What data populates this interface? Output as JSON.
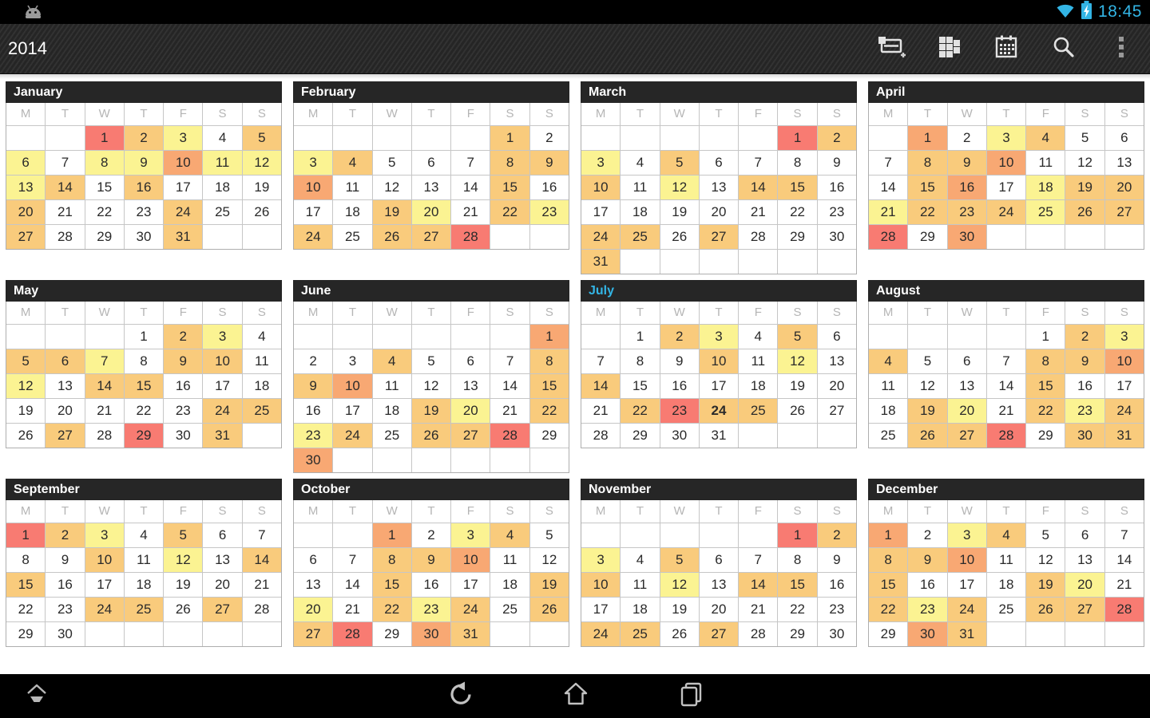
{
  "status_bar": {
    "time": "18:45",
    "icons": [
      "android-logo",
      "wifi",
      "battery-charging"
    ]
  },
  "action_bar": {
    "title": "2014",
    "icons": [
      {
        "name": "new-event"
      },
      {
        "name": "multi-view-grid"
      },
      {
        "name": "month-view"
      },
      {
        "name": "search"
      },
      {
        "name": "overflow-menu"
      }
    ]
  },
  "nav_bar": {
    "icons": [
      "hide-bar",
      "back",
      "home",
      "recent-apps"
    ]
  },
  "colors": {
    "accent_blue": "#33B5E5",
    "header_bg": "#262626",
    "level_yellow": "#FBF392",
    "level_orange": "#F9CB7C",
    "level_deep_orange": "#F8A873",
    "level_red": "#F87B72"
  },
  "calendar": {
    "weekdays": [
      "M",
      "T",
      "W",
      "T",
      "F",
      "S",
      "S"
    ],
    "today": {
      "month": "July",
      "day": 24
    },
    "current_month_color": "#33B5E5",
    "months": [
      {
        "name": "January",
        "start": 2,
        "days": 31,
        "yellow": [
          3,
          6,
          8,
          9,
          11,
          12,
          13
        ],
        "orange": [
          2,
          5,
          14,
          16,
          20,
          24,
          27,
          31
        ],
        "deep_orange": [
          10
        ],
        "red": [
          1
        ]
      },
      {
        "name": "February",
        "start": 5,
        "days": 28,
        "yellow": [
          3,
          20,
          23
        ],
        "orange": [
          1,
          4,
          8,
          9,
          15,
          19,
          22,
          24,
          26,
          27
        ],
        "deep_orange": [
          10
        ],
        "red": [
          28
        ]
      },
      {
        "name": "March",
        "start": 5,
        "days": 31,
        "yellow": [
          3,
          12
        ],
        "orange": [
          2,
          5,
          10,
          14,
          15,
          24,
          25,
          27,
          31
        ],
        "deep_orange": [],
        "red": [
          1
        ]
      },
      {
        "name": "April",
        "start": 1,
        "days": 30,
        "yellow": [
          3,
          18,
          21,
          25
        ],
        "orange": [
          4,
          8,
          9,
          15,
          19,
          20,
          22,
          23,
          24,
          26,
          27
        ],
        "deep_orange": [
          1,
          10,
          16,
          30
        ],
        "red": [
          28
        ]
      },
      {
        "name": "May",
        "start": 3,
        "days": 31,
        "yellow": [
          3,
          7,
          12
        ],
        "orange": [
          2,
          5,
          6,
          9,
          10,
          14,
          15,
          24,
          25,
          27,
          31
        ],
        "deep_orange": [],
        "red": [
          29
        ]
      },
      {
        "name": "June",
        "start": 6,
        "days": 30,
        "yellow": [
          20,
          23
        ],
        "orange": [
          4,
          8,
          9,
          15,
          19,
          22,
          24,
          26,
          27
        ],
        "deep_orange": [
          1,
          10,
          30
        ],
        "red": [
          28
        ]
      },
      {
        "name": "July",
        "start": 1,
        "days": 31,
        "yellow": [
          3,
          12
        ],
        "orange": [
          2,
          5,
          10,
          14,
          22,
          24,
          25
        ],
        "deep_orange": [],
        "red": [
          23
        ],
        "is_current": true
      },
      {
        "name": "August",
        "start": 4,
        "days": 31,
        "yellow": [
          3,
          20,
          23
        ],
        "orange": [
          2,
          4,
          8,
          9,
          15,
          19,
          22,
          24,
          26,
          27,
          30,
          31
        ],
        "deep_orange": [
          10
        ],
        "red": [
          28
        ]
      },
      {
        "name": "September",
        "start": 0,
        "days": 30,
        "yellow": [
          3,
          12
        ],
        "orange": [
          2,
          5,
          10,
          14,
          15,
          24,
          25,
          27
        ],
        "deep_orange": [],
        "red": [
          1
        ]
      },
      {
        "name": "October",
        "start": 2,
        "days": 31,
        "yellow": [
          3,
          20,
          23
        ],
        "orange": [
          4,
          8,
          9,
          15,
          19,
          22,
          24,
          26,
          27,
          31
        ],
        "deep_orange": [
          1,
          10,
          30
        ],
        "red": [
          28
        ]
      },
      {
        "name": "November",
        "start": 5,
        "days": 30,
        "yellow": [
          3,
          12
        ],
        "orange": [
          2,
          5,
          10,
          14,
          15,
          24,
          25,
          27
        ],
        "deep_orange": [],
        "red": [
          1
        ]
      },
      {
        "name": "December",
        "start": 0,
        "days": 31,
        "yellow": [
          3,
          20,
          23
        ],
        "orange": [
          4,
          8,
          9,
          15,
          19,
          22,
          24,
          26,
          27,
          31
        ],
        "deep_orange": [
          1,
          10,
          30
        ],
        "red": [
          28
        ]
      }
    ]
  }
}
